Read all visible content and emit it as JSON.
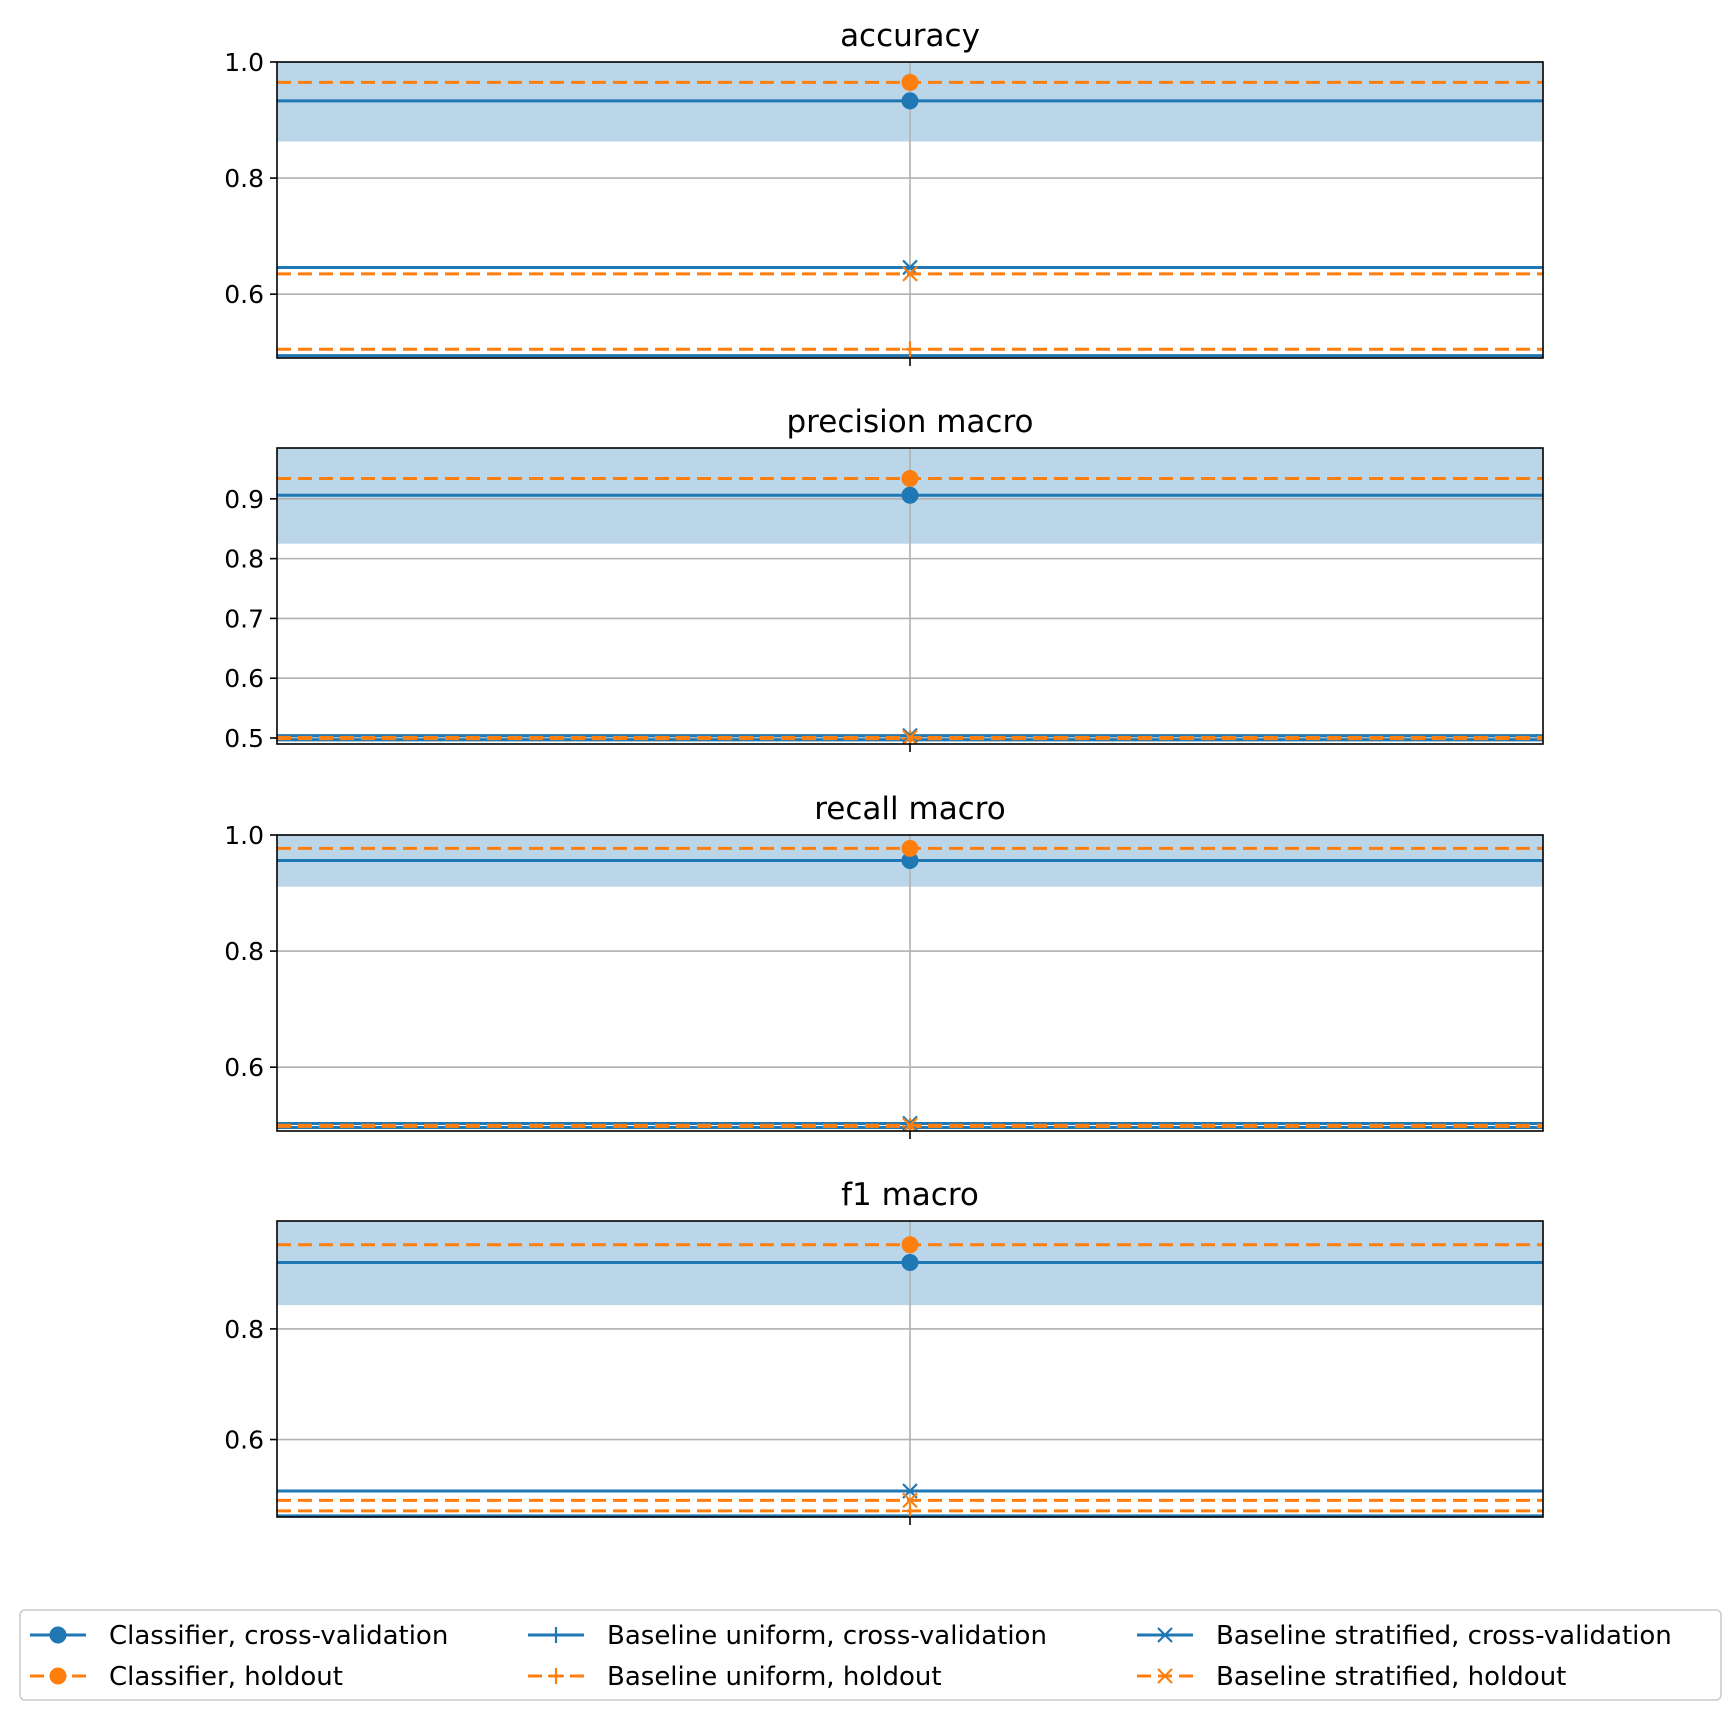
{
  "colors": {
    "cv": "#1f77b4",
    "holdout": "#ff7f0e",
    "band": "#1f77b4",
    "grid": "#b0b0b0",
    "axis": "#000000"
  },
  "chart_data": [
    {
      "type": "line",
      "title": "accuracy",
      "xlabel": "",
      "ylabel": "",
      "ylim": [
        0.49,
        1.0
      ],
      "yticks": [
        0.6,
        0.8,
        1.0
      ],
      "yticklabels": [
        "0.6",
        "0.8",
        "1.0"
      ],
      "grid": true,
      "x": [
        0
      ],
      "band": {
        "series": "Classifier, cross-validation",
        "lower": 0.863,
        "upper": 1.0
      },
      "series": [
        {
          "name": "Classifier, cross-validation",
          "values": [
            0.933
          ],
          "band": [
            0.863,
            1.0
          ]
        },
        {
          "name": "Classifier, holdout",
          "values": [
            0.965
          ]
        },
        {
          "name": "Baseline uniform, cross-validation",
          "values": [
            0.494
          ]
        },
        {
          "name": "Baseline uniform, holdout",
          "values": [
            0.505
          ]
        },
        {
          "name": "Baseline stratified, cross-validation",
          "values": [
            0.646
          ]
        },
        {
          "name": "Baseline stratified, holdout",
          "values": [
            0.635
          ]
        }
      ]
    },
    {
      "type": "line",
      "title": "precision macro",
      "xlabel": "",
      "ylabel": "",
      "ylim": [
        0.49,
        0.985
      ],
      "yticks": [
        0.5,
        0.6,
        0.7,
        0.8,
        0.9
      ],
      "yticklabels": [
        "0.5",
        "0.6",
        "0.7",
        "0.8",
        "0.9"
      ],
      "grid": true,
      "x": [
        0
      ],
      "band": {
        "series": "Classifier, cross-validation",
        "lower": 0.825,
        "upper": 0.985
      },
      "series": [
        {
          "name": "Classifier, cross-validation",
          "values": [
            0.906
          ],
          "band": [
            0.825,
            0.985
          ]
        },
        {
          "name": "Classifier, holdout",
          "values": [
            0.934
          ]
        },
        {
          "name": "Baseline uniform, cross-validation",
          "values": [
            0.497
          ]
        },
        {
          "name": "Baseline uniform, holdout",
          "values": [
            0.499
          ]
        },
        {
          "name": "Baseline stratified, cross-validation",
          "values": [
            0.504
          ]
        },
        {
          "name": "Baseline stratified, holdout",
          "values": [
            0.501
          ]
        }
      ]
    },
    {
      "type": "line",
      "title": "recall macro",
      "xlabel": "",
      "ylabel": "",
      "ylim": [
        0.49,
        1.0
      ],
      "yticks": [
        0.6,
        0.8,
        1.0
      ],
      "yticklabels": [
        "0.6",
        "0.8",
        "1.0"
      ],
      "grid": true,
      "x": [
        0
      ],
      "band": {
        "series": "Classifier, cross-validation",
        "lower": 0.911,
        "upper": 1.0
      },
      "series": [
        {
          "name": "Classifier, cross-validation",
          "values": [
            0.956
          ],
          "band": [
            0.911,
            1.0
          ]
        },
        {
          "name": "Classifier, holdout",
          "values": [
            0.977
          ]
        },
        {
          "name": "Baseline uniform, cross-validation",
          "values": [
            0.496
          ]
        },
        {
          "name": "Baseline uniform, holdout",
          "values": [
            0.498
          ]
        },
        {
          "name": "Baseline stratified, cross-validation",
          "values": [
            0.503
          ]
        },
        {
          "name": "Baseline stratified, holdout",
          "values": [
            0.5
          ]
        }
      ]
    },
    {
      "type": "line",
      "title": "f1 macro",
      "xlabel": "",
      "ylabel": "",
      "ylim": [
        0.46,
        0.995
      ],
      "yticks": [
        0.6,
        0.8
      ],
      "yticklabels": [
        "0.6",
        "0.8"
      ],
      "grid": true,
      "x": [
        0
      ],
      "band": {
        "series": "Classifier, cross-validation",
        "lower": 0.843,
        "upper": 0.995
      },
      "series": [
        {
          "name": "Classifier, cross-validation",
          "values": [
            0.92
          ],
          "band": [
            0.843,
            0.995
          ]
        },
        {
          "name": "Classifier, holdout",
          "values": [
            0.952
          ]
        },
        {
          "name": "Baseline uniform, cross-validation",
          "values": [
            0.462
          ]
        },
        {
          "name": "Baseline uniform, holdout",
          "values": [
            0.471
          ]
        },
        {
          "name": "Baseline stratified, cross-validation",
          "values": [
            0.507
          ]
        },
        {
          "name": "Baseline stratified, holdout",
          "values": [
            0.49
          ]
        }
      ]
    }
  ],
  "legend": {
    "placement": "bottom",
    "columns": 3,
    "entries": [
      {
        "label": "Classifier, cross-validation",
        "color": "cv",
        "dash": false,
        "marker": "circle"
      },
      {
        "label": "Classifier, holdout",
        "color": "holdout",
        "dash": true,
        "marker": "circle"
      },
      {
        "label": "Baseline uniform, cross-validation",
        "color": "cv",
        "dash": false,
        "marker": "plus"
      },
      {
        "label": "Baseline uniform, holdout",
        "color": "holdout",
        "dash": true,
        "marker": "plus"
      },
      {
        "label": "Baseline stratified, cross-validation",
        "color": "cv",
        "dash": false,
        "marker": "x"
      },
      {
        "label": "Baseline stratified, holdout",
        "color": "holdout",
        "dash": true,
        "marker": "x"
      }
    ]
  }
}
